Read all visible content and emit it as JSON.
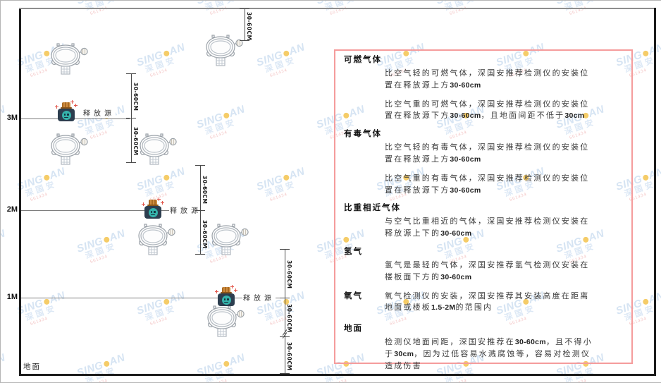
{
  "watermark": {
    "brand_left": "SING",
    "brand_right": "AN",
    "company": "深国安",
    "contact": "661434"
  },
  "diagram": {
    "heights": {
      "h3": "3M",
      "h2": "2M",
      "h1": "1M"
    },
    "ground_label": "地面",
    "release_source_label": "释放源",
    "dim_label": "30-60CM"
  },
  "panel": {
    "sections": [
      {
        "heading": "可燃气体",
        "inline": false,
        "paragraphs": [
          [
            {
              "t": "比空气轻的可燃气体，深国安推荐检测仪的安装位置在释放源上方"
            },
            {
              "t": "30-60cm",
              "b": true
            }
          ],
          [
            {
              "t": "比空气重的可燃气体，深国安推荐检测仪的安装位置在释放源下方"
            },
            {
              "t": "30-60cm",
              "b": true
            },
            {
              "t": "，且地面间距不低于"
            },
            {
              "t": "30cm",
              "b": true
            }
          ]
        ]
      },
      {
        "heading": "有毒气体",
        "inline": false,
        "paragraphs": [
          [
            {
              "t": "比空气轻的有毒气体，深国安推荐检测仪的安装位置在释放源上方"
            },
            {
              "t": "30-60cm",
              "b": true
            }
          ],
          [
            {
              "t": "比空气重的有毒气体，深国安推荐检测仪的安装位置在释放源下方"
            },
            {
              "t": "30-60cm",
              "b": true
            }
          ]
        ]
      },
      {
        "heading": "比重相近气体",
        "inline": false,
        "paragraphs": [
          [
            {
              "t": "与空气比重相近的气体，深国安推荐检测仪安装在释放源上下的"
            },
            {
              "t": "30-60cm",
              "b": true
            }
          ]
        ]
      },
      {
        "heading": "氢气",
        "inline": false,
        "paragraphs": [
          [
            {
              "t": "氢气是最轻的气体，深国安推荐氢气检测仪安装在楼板面下方的"
            },
            {
              "t": "30-60cm",
              "b": true
            }
          ]
        ]
      },
      {
        "heading": "氧气",
        "inline": true,
        "paragraphs": [
          [
            {
              "t": "氧气检测仪的安装，深国安推荐其安装高度在距离地面或楼板"
            },
            {
              "t": "1.5-2M",
              "b": true
            },
            {
              "t": "的范围内"
            }
          ]
        ]
      },
      {
        "heading": "地面",
        "inline": false,
        "gap": true,
        "paragraphs": [
          [
            {
              "t": "检测仪地面间距，深国安推荐在"
            },
            {
              "t": "30-60cm",
              "b": true
            },
            {
              "t": "，且不得小于"
            },
            {
              "t": "30cm",
              "b": true
            },
            {
              "t": "，因为过低容易水溅腐蚀等，容易对检测仪造成伤害"
            }
          ]
        ]
      }
    ]
  }
}
